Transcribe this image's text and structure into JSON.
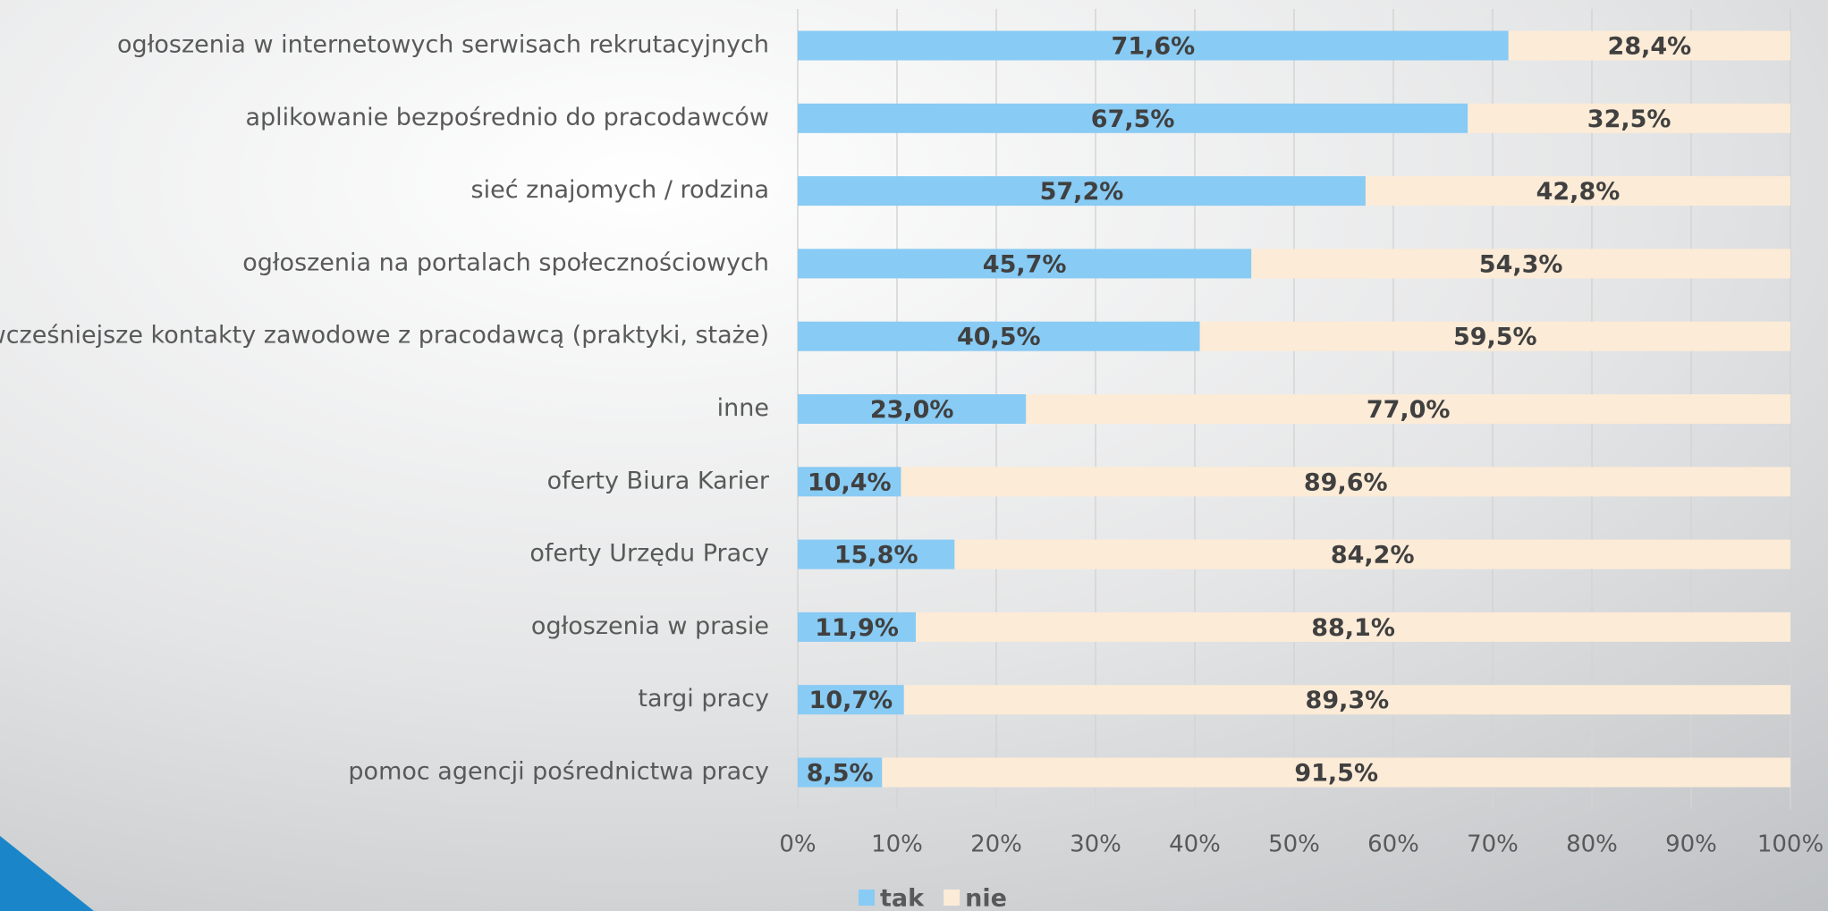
{
  "chart_data": {
    "type": "stacked_bar_horizontal",
    "categories": [
      "ogłoszenia w internetowych serwisach rekrutacyjnych",
      "aplikowanie bezpośrednio do pracodawców",
      "sieć znajomych / rodzina",
      "ogłoszenia na portalach społecznościowych",
      "wcześniejsze kontakty zawodowe z pracodawcą (praktyki, staże)",
      "inne",
      "oferty Biura Karier",
      "oferty Urzędu Pracy",
      "ogłoszenia w prasie",
      "targi pracy",
      "pomoc agencji pośrednictwa pracy"
    ],
    "series": [
      {
        "name": "tak",
        "color": "#88cbf4",
        "values": [
          71.6,
          67.5,
          57.2,
          45.7,
          40.5,
          23.0,
          10.4,
          15.8,
          11.9,
          10.7,
          8.5
        ],
        "value_labels": [
          "71,6%",
          "67,5%",
          "57,2%",
          "45,7%",
          "40,5%",
          "23,0%",
          "10,4%",
          "15,8%",
          "11,9%",
          "10,7%",
          "8,5%"
        ]
      },
      {
        "name": "nie",
        "color": "#fcebd7",
        "values": [
          28.4,
          32.5,
          42.8,
          54.3,
          59.5,
          77.0,
          89.6,
          84.2,
          88.1,
          89.3,
          91.5
        ],
        "value_labels": [
          "28,4%",
          "32,5%",
          "42,8%",
          "54,3%",
          "59,5%",
          "77,0%",
          "89,6%",
          "84,2%",
          "88,1%",
          "89,3%",
          "91,5%"
        ]
      }
    ],
    "xlim": [
      0,
      100
    ],
    "xticks": [
      {
        "value": 0,
        "label": "0%"
      },
      {
        "value": 10,
        "label": "10%"
      },
      {
        "value": 20,
        "label": "20%"
      },
      {
        "value": 30,
        "label": "30%"
      },
      {
        "value": 40,
        "label": "40%"
      },
      {
        "value": 50,
        "label": "50%"
      },
      {
        "value": 60,
        "label": "60%"
      },
      {
        "value": 70,
        "label": "70%"
      },
      {
        "value": 80,
        "label": "80%"
      },
      {
        "value": 90,
        "label": "90%"
      },
      {
        "value": 100,
        "label": "100%"
      }
    ],
    "grid": true,
    "legend": "bottom"
  }
}
